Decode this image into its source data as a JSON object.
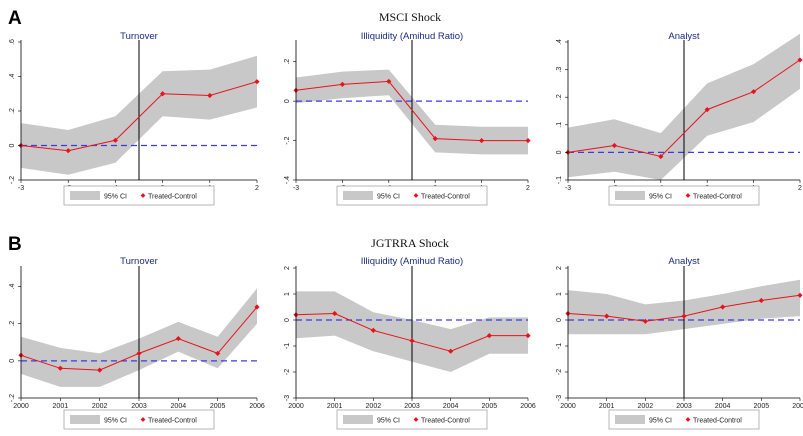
{
  "panels": [
    {
      "label": "A",
      "title": "MSCI Shock"
    },
    {
      "label": "B",
      "title": "JGTRRA Shock"
    }
  ],
  "legend": {
    "ci": "95% CI",
    "series": "Treated-Control"
  },
  "colors": {
    "line": "#e8121b",
    "ci": "#c8c8c8",
    "zero": "#3a3ae0",
    "event": "#000000",
    "title": "#1a2a7a"
  },
  "chart_data": [
    {
      "type": "line",
      "panel": "A",
      "title": "Turnover",
      "x": [
        -3,
        -2,
        -1,
        0,
        1,
        2
      ],
      "xticks": [
        "-3",
        "-2",
        "-1",
        "0",
        "1",
        "2"
      ],
      "event_x": -0.5,
      "ylim": [
        -0.2,
        0.6
      ],
      "yticks": [
        -0.2,
        0,
        0.2,
        0.4,
        0.6
      ],
      "ytick_labels": [
        "-.2",
        "0",
        ".2",
        ".4",
        ".6"
      ],
      "series": [
        {
          "name": "Treated-Control",
          "values": [
            0.0,
            -0.03,
            0.03,
            0.3,
            0.29,
            0.37
          ]
        }
      ],
      "ci_lower": [
        -0.13,
        -0.17,
        -0.1,
        0.17,
        0.15,
        0.22
      ],
      "ci_upper": [
        0.13,
        0.09,
        0.17,
        0.43,
        0.44,
        0.52
      ]
    },
    {
      "type": "line",
      "panel": "A",
      "title": "Illiquidity (Amihud Ratio)",
      "x": [
        -3,
        -2,
        -1,
        0,
        1,
        2
      ],
      "xticks": [
        "-3",
        "-2",
        "-1",
        "0",
        "1",
        "2"
      ],
      "event_x": -0.5,
      "ylim": [
        -0.4,
        0.3
      ],
      "yticks": [
        -0.4,
        -0.2,
        0,
        0.2
      ],
      "ytick_labels": [
        "-.4",
        "-.2",
        "0",
        ".2"
      ],
      "series": [
        {
          "name": "Treated-Control",
          "values": [
            0.055,
            0.085,
            0.1,
            -0.19,
            -0.2,
            -0.2
          ]
        }
      ],
      "ci_lower": [
        -0.01,
        0.015,
        0.03,
        -0.26,
        -0.27,
        -0.27
      ],
      "ci_upper": [
        0.12,
        0.15,
        0.16,
        -0.12,
        -0.13,
        -0.13
      ]
    },
    {
      "type": "line",
      "panel": "A",
      "title": "Analyst",
      "x": [
        -3,
        -2,
        -1,
        0,
        1,
        2
      ],
      "xticks": [
        "-3",
        "-2",
        "-1",
        "0",
        "1",
        "2"
      ],
      "event_x": -0.5,
      "ylim": [
        -0.1,
        0.4
      ],
      "yticks": [
        -0.1,
        0,
        0.1,
        0.2,
        0.3,
        0.4
      ],
      "ytick_labels": [
        "-.1",
        "0",
        ".1",
        ".2",
        ".3",
        ".4"
      ],
      "series": [
        {
          "name": "Treated-Control",
          "values": [
            0.0,
            0.025,
            -0.015,
            0.155,
            0.22,
            0.335
          ]
        }
      ],
      "ci_lower": [
        -0.09,
        -0.07,
        -0.1,
        0.06,
        0.11,
        0.23
      ],
      "ci_upper": [
        0.09,
        0.12,
        0.07,
        0.25,
        0.32,
        0.43
      ]
    },
    {
      "type": "line",
      "panel": "B",
      "title": "Turnover",
      "x": [
        2000,
        2001,
        2002,
        2003,
        2004,
        2005,
        2006
      ],
      "xticks": [
        "2000",
        "2001",
        "2002",
        "2003",
        "2004",
        "2005",
        "2006"
      ],
      "event_x": 2003,
      "ylim": [
        -0.2,
        0.5
      ],
      "yticks": [
        -0.2,
        0,
        0.2,
        0.4
      ],
      "ytick_labels": [
        "-.2",
        "0",
        ".2",
        ".4"
      ],
      "series": [
        {
          "name": "Treated-Control",
          "values": [
            0.03,
            -0.04,
            -0.05,
            0.04,
            0.12,
            0.04,
            0.29
          ]
        }
      ],
      "ci_lower": [
        -0.07,
        -0.14,
        -0.14,
        -0.05,
        0.05,
        -0.04,
        0.2
      ],
      "ci_upper": [
        0.13,
        0.07,
        0.04,
        0.12,
        0.21,
        0.13,
        0.39
      ]
    },
    {
      "type": "line",
      "panel": "B",
      "title": "Illiquidity (Amihud Ratio)",
      "x": [
        2000,
        2001,
        2002,
        2003,
        2004,
        2005,
        2006
      ],
      "xticks": [
        "2000",
        "2001",
        "2002",
        "2003",
        "2004",
        "2005",
        "2006"
      ],
      "event_x": 2003,
      "ylim": [
        -3,
        2
      ],
      "yticks": [
        -3,
        -2,
        -1,
        0,
        1,
        2
      ],
      "ytick_labels": [
        "-3",
        "-2",
        "-1",
        "0",
        "1",
        "2"
      ],
      "series": [
        {
          "name": "Treated-Control",
          "values": [
            0.2,
            0.25,
            -0.4,
            -0.8,
            -1.2,
            -0.6,
            -0.6
          ]
        }
      ],
      "ci_lower": [
        -0.7,
        -0.6,
        -1.2,
        -1.6,
        -2.0,
        -1.3,
        -1.3
      ],
      "ci_upper": [
        1.1,
        1.1,
        0.3,
        0.0,
        -0.35,
        0.1,
        0.1
      ]
    },
    {
      "type": "line",
      "panel": "B",
      "title": "Analyst",
      "x": [
        2000,
        2001,
        2002,
        2003,
        2004,
        2005,
        2006
      ],
      "xticks": [
        "2000",
        "2001",
        "2002",
        "2003",
        "2004",
        "2005",
        "2006"
      ],
      "event_x": 2003,
      "ylim": [
        -3,
        2
      ],
      "yticks": [
        -3,
        -2,
        -1,
        0,
        1,
        2
      ],
      "ytick_labels": [
        "-3",
        "-2",
        "-1",
        "0",
        "1",
        "2"
      ],
      "series": [
        {
          "name": "Treated-Control",
          "values": [
            0.25,
            0.15,
            -0.05,
            0.15,
            0.5,
            0.75,
            0.95
          ]
        }
      ],
      "ci_lower": [
        -0.55,
        -0.55,
        -0.55,
        -0.35,
        -0.15,
        0.05,
        0.15
      ],
      "ci_upper": [
        1.15,
        1.0,
        0.6,
        0.75,
        1.0,
        1.3,
        1.55
      ]
    }
  ]
}
